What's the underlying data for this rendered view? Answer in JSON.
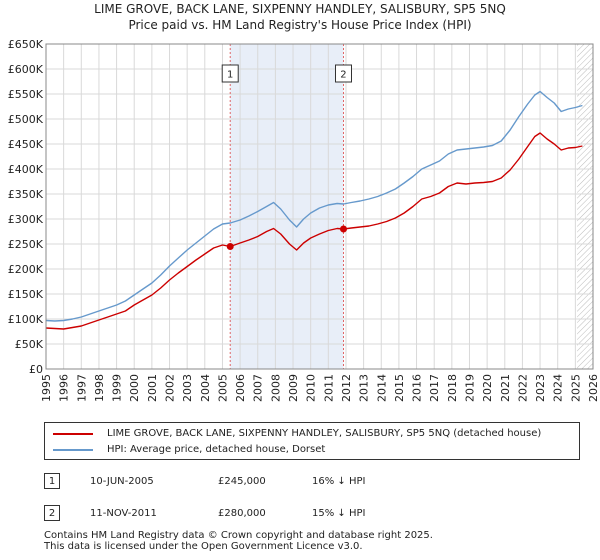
{
  "title_line1": "LIME GROVE, BACK LANE, SIXPENNY HANDLEY, SALISBURY, SP5 5NQ",
  "title_line2": "Price paid vs. HM Land Registry's House Price Index (HPI)",
  "colors": {
    "price_paid": "#cc0000",
    "hpi": "#6699cc",
    "shade": "#e8eef8",
    "grid": "#d9d9d9",
    "marker_line": "#e06666"
  },
  "legend": {
    "price_paid": "LIME GROVE, BACK LANE, SIXPENNY HANDLEY, SALISBURY, SP5 5NQ (detached house)",
    "hpi": "HPI: Average price, detached house, Dorset"
  },
  "sales": [
    {
      "num": "1",
      "date": "10-JUN-2005",
      "price": "£245,000",
      "hpi_diff": "16% ↓ HPI"
    },
    {
      "num": "2",
      "date": "11-NOV-2011",
      "price": "£280,000",
      "hpi_diff": "15% ↓ HPI"
    }
  ],
  "footer": {
    "line1": "Contains HM Land Registry data © Crown copyright and database right 2025.",
    "line2": "This data is licensed under the Open Government Licence v3.0."
  },
  "chart_data": {
    "type": "line",
    "title": "",
    "xlabel": "",
    "ylabel": "",
    "xlim": [
      1995,
      2026
    ],
    "ylim": [
      0,
      650000
    ],
    "y_ticks": [
      0,
      50000,
      100000,
      150000,
      200000,
      250000,
      300000,
      350000,
      400000,
      450000,
      500000,
      550000,
      600000,
      650000
    ],
    "y_tick_labels": [
      "£0",
      "£50K",
      "£100K",
      "£150K",
      "£200K",
      "£250K",
      "£300K",
      "£350K",
      "£400K",
      "£450K",
      "£500K",
      "£550K",
      "£600K",
      "£650K"
    ],
    "x_ticks": [
      1995,
      1996,
      1997,
      1998,
      1999,
      2000,
      2001,
      2002,
      2003,
      2004,
      2005,
      2006,
      2007,
      2008,
      2009,
      2010,
      2011,
      2012,
      2013,
      2014,
      2015,
      2016,
      2017,
      2018,
      2019,
      2020,
      2021,
      2022,
      2023,
      2024,
      2025,
      2026
    ],
    "shaded_period": [
      2005.44,
      2011.86
    ],
    "hatched_from": 2025.1,
    "grid": true,
    "series": [
      {
        "name": "LIME GROVE, BACK LANE, SIXPENNY HANDLEY, SALISBURY, SP5 5NQ (detached house)",
        "color": "#cc0000",
        "x": [
          1995.0,
          1995.5,
          1996.0,
          1996.5,
          1997.0,
          1997.5,
          1998.0,
          1998.5,
          1999.0,
          1999.5,
          2000.0,
          2000.5,
          2001.0,
          2001.5,
          2002.0,
          2002.5,
          2003.0,
          2003.5,
          2004.0,
          2004.5,
          2005.0,
          2005.44,
          2006.0,
          2006.5,
          2007.0,
          2007.5,
          2007.9,
          2008.3,
          2008.8,
          2009.2,
          2009.6,
          2010.0,
          2010.5,
          2011.0,
          2011.5,
          2011.86,
          2012.3,
          2012.8,
          2013.3,
          2013.8,
          2014.3,
          2014.8,
          2015.3,
          2015.8,
          2016.3,
          2016.8,
          2017.3,
          2017.8,
          2018.3,
          2018.8,
          2019.3,
          2019.8,
          2020.3,
          2020.8,
          2021.3,
          2021.8,
          2022.3,
          2022.7,
          2023.0,
          2023.4,
          2023.8,
          2024.2,
          2024.6,
          2025.0,
          2025.4
        ],
        "y": [
          82000,
          81000,
          80000,
          83000,
          86000,
          92000,
          98000,
          104000,
          110000,
          116000,
          128000,
          138000,
          148000,
          162000,
          178000,
          192000,
          205000,
          218000,
          230000,
          242000,
          248000,
          245000,
          252000,
          258000,
          265000,
          275000,
          281000,
          270000,
          250000,
          238000,
          252000,
          262000,
          270000,
          277000,
          281000,
          280000,
          282000,
          284000,
          286000,
          290000,
          295000,
          302000,
          312000,
          325000,
          340000,
          345000,
          352000,
          365000,
          372000,
          370000,
          372000,
          373000,
          375000,
          382000,
          398000,
          420000,
          445000,
          465000,
          472000,
          460000,
          450000,
          438000,
          442000,
          443000,
          446000
        ]
      },
      {
        "name": "HPI: Average price, detached house, Dorset",
        "color": "#6699cc",
        "x": [
          1995.0,
          1995.5,
          1996.0,
          1996.5,
          1997.0,
          1997.5,
          1998.0,
          1998.5,
          1999.0,
          1999.5,
          2000.0,
          2000.5,
          2001.0,
          2001.5,
          2002.0,
          2002.5,
          2003.0,
          2003.5,
          2004.0,
          2004.5,
          2005.0,
          2005.44,
          2006.0,
          2006.5,
          2007.0,
          2007.5,
          2007.9,
          2008.3,
          2008.8,
          2009.2,
          2009.6,
          2010.0,
          2010.5,
          2011.0,
          2011.5,
          2011.86,
          2012.3,
          2012.8,
          2013.3,
          2013.8,
          2014.3,
          2014.8,
          2015.3,
          2015.8,
          2016.3,
          2016.8,
          2017.3,
          2017.8,
          2018.3,
          2018.8,
          2019.3,
          2019.8,
          2020.3,
          2020.8,
          2021.3,
          2021.8,
          2022.3,
          2022.7,
          2023.0,
          2023.4,
          2023.8,
          2024.2,
          2024.6,
          2025.0,
          2025.4
        ],
        "y": [
          97000,
          96000,
          97000,
          100000,
          104000,
          110000,
          116000,
          122000,
          128000,
          136000,
          148000,
          160000,
          172000,
          188000,
          206000,
          222000,
          238000,
          252000,
          266000,
          280000,
          290000,
          292000,
          298000,
          306000,
          315000,
          325000,
          333000,
          320000,
          298000,
          284000,
          300000,
          312000,
          322000,
          328000,
          331000,
          330000,
          333000,
          336000,
          340000,
          345000,
          352000,
          360000,
          372000,
          385000,
          400000,
          408000,
          416000,
          430000,
          438000,
          440000,
          442000,
          444000,
          447000,
          456000,
          478000,
          505000,
          530000,
          548000,
          555000,
          543000,
          532000,
          515000,
          520000,
          523000,
          527000
        ]
      }
    ],
    "sale_markers": [
      {
        "label": "1",
        "x": 2005.44,
        "y": 245000
      },
      {
        "label": "2",
        "x": 2011.86,
        "y": 280000
      }
    ]
  }
}
